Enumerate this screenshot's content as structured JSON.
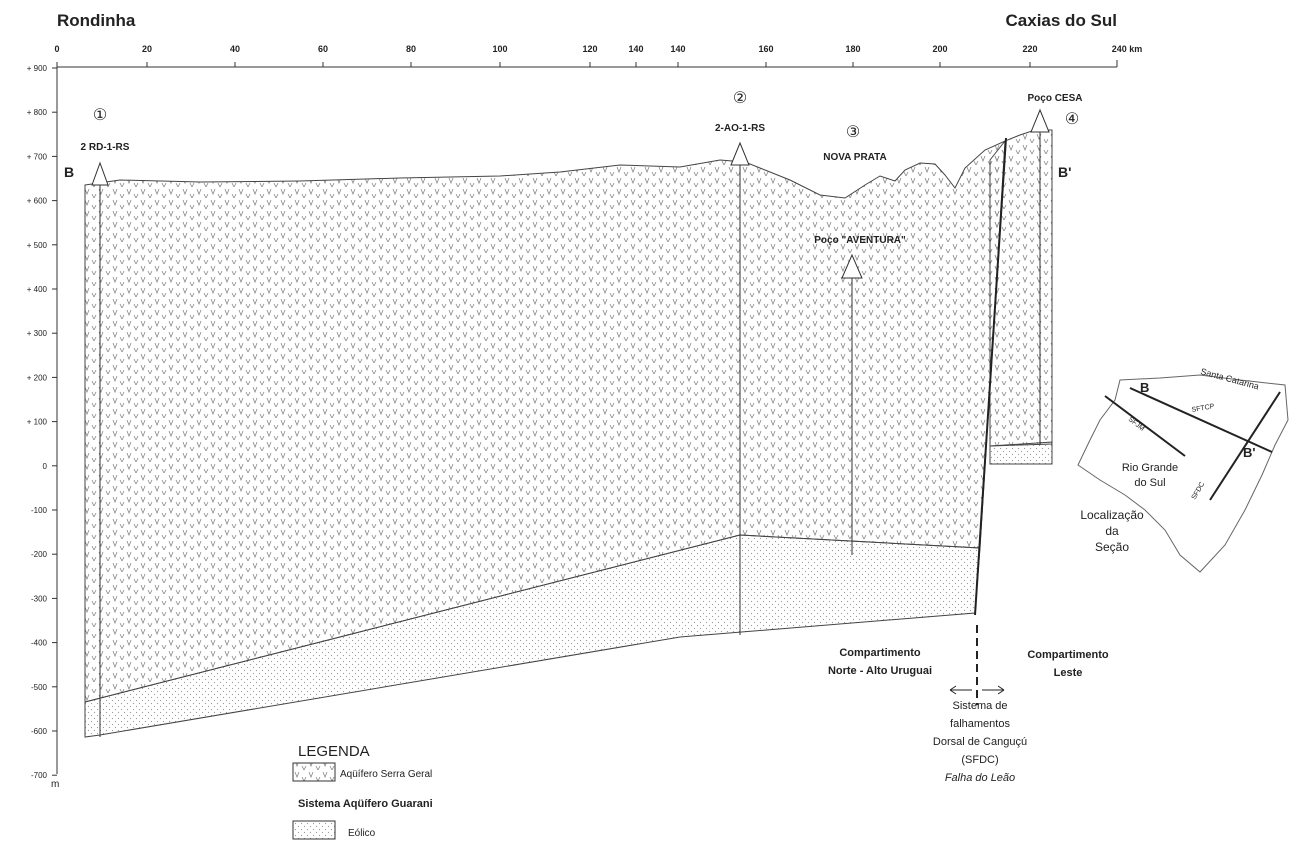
{
  "header": {
    "left": "Rondinha",
    "right": "Caxias do Sul"
  },
  "x_axis": {
    "labels": [
      "0",
      "20",
      "40",
      "60",
      "80",
      "100",
      "120",
      "140",
      "140",
      "160",
      "180",
      "200",
      "220",
      "240 km"
    ]
  },
  "y_axis": {
    "labels": [
      "+ 900",
      "+ 800",
      "+ 700",
      "+ 600",
      "+ 500",
      "+ 400",
      "+ 300",
      "+ 200",
      "+ 100",
      "0",
      "-100",
      "-200",
      "-300",
      "-400",
      "-500",
      "-600",
      "-700"
    ],
    "unit": "m"
  },
  "section": {
    "start": "B",
    "end": "B'"
  },
  "wells": [
    {
      "number": "①",
      "label": "2 RD-1-RS"
    },
    {
      "number": "②",
      "label": "2-AO-1-RS"
    },
    {
      "number": "③",
      "label": "NOVA PRATA"
    },
    {
      "number": "④",
      "label": "Poço CESA"
    }
  ],
  "aventura": "Poço \"AVENTURA\"",
  "compartments": {
    "west": [
      "Compartimento",
      "Norte - Alto Uruguai"
    ],
    "east": [
      "Compartimento",
      "Leste"
    ]
  },
  "fault": {
    "lines": [
      "Sistema de",
      "falhamentos",
      "Dorsal de Canguçú",
      "(SFDC)"
    ],
    "name": "Falha do Leão"
  },
  "legend": {
    "title": "LEGENDA",
    "serra_geral": "Aqüífero Serra Geral",
    "system": "Sistema Aqüífero Guarani",
    "eolico": "Eólico"
  },
  "inset": {
    "state_north": "Santa Catarina",
    "b": "B",
    "b_prime": "B'",
    "sfdc": "SFDC",
    "sfjm": "SFJM",
    "sftcp": "SFTCP",
    "state": [
      "Rio Grande",
      "do Sul"
    ],
    "caption": [
      "Localização",
      "da",
      "Seção"
    ]
  }
}
